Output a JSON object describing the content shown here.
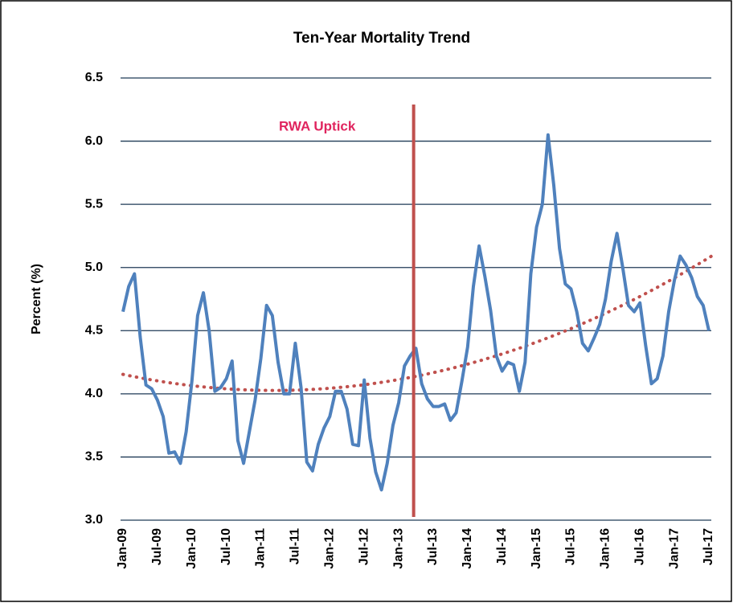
{
  "chart_data": {
    "type": "line",
    "title": "Ten-Year Mortality Trend",
    "y_label": "Percent (%)",
    "categories": [
      "Jan-09",
      null,
      null,
      null,
      null,
      null,
      "Jul-09",
      null,
      null,
      null,
      null,
      null,
      "Jan-10",
      null,
      null,
      null,
      null,
      null,
      "Jul-10",
      null,
      null,
      null,
      null,
      null,
      "Jan-11",
      null,
      null,
      null,
      null,
      null,
      "Jul-11",
      null,
      null,
      null,
      null,
      null,
      "Jan-12",
      null,
      null,
      null,
      null,
      null,
      "Jul-12",
      null,
      null,
      null,
      null,
      null,
      "Jan-13",
      null,
      null,
      null,
      null,
      null,
      "Jul-13",
      null,
      null,
      null,
      null,
      null,
      "Jan-14",
      null,
      null,
      null,
      null,
      null,
      "Jul-14",
      null,
      null,
      null,
      null,
      null,
      "Jan-15",
      null,
      null,
      null,
      null,
      null,
      "Jul-15",
      null,
      null,
      null,
      null,
      null,
      "Jan-16",
      null,
      null,
      null,
      null,
      null,
      "Jul-16",
      null,
      null,
      null,
      null,
      null,
      "Jan-17",
      null,
      null,
      null,
      null,
      null,
      "Jul-17"
    ],
    "series": [
      {
        "color": "#4f81bd",
        "values": [
          4.65,
          4.85,
          4.95,
          4.45,
          4.07,
          4.04,
          3.95,
          3.82,
          3.53,
          3.54,
          3.45,
          3.7,
          4.1,
          4.62,
          4.8,
          4.5,
          4.02,
          4.05,
          4.12,
          4.26,
          3.63,
          3.45,
          3.7,
          3.95,
          4.28,
          4.7,
          4.62,
          4.25,
          4.0,
          4.0,
          4.4,
          4.05,
          3.46,
          3.39,
          3.6,
          3.73,
          3.82,
          4.02,
          4.02,
          3.88,
          3.6,
          3.59,
          4.11,
          3.65,
          3.38,
          3.24,
          3.45,
          3.75,
          3.93,
          4.22,
          4.3,
          4.36,
          4.08,
          3.96,
          3.9,
          3.9,
          3.92,
          3.79,
          3.85,
          4.1,
          4.37,
          4.85,
          5.17,
          4.93,
          4.66,
          4.3,
          4.18,
          4.25,
          4.23,
          4.02,
          4.25,
          4.95,
          5.32,
          5.5,
          6.05,
          5.65,
          5.15,
          4.87,
          4.83,
          4.65,
          4.4,
          4.34,
          4.44,
          4.55,
          4.75,
          5.05,
          5.27,
          5.0,
          4.7,
          4.65,
          4.72,
          4.38,
          4.08,
          4.12,
          4.3,
          4.65,
          4.9,
          5.09,
          5.02,
          4.92,
          4.77,
          4.7,
          4.5
        ]
      }
    ],
    "trendline": {
      "type": "polynomial",
      "order": 2,
      "color": "#c0504d"
    },
    "vline": {
      "at": 50.6,
      "color": "#c0504d",
      "label": "RWA Uptick",
      "label_color": "#e0245e"
    },
    "ylim": [
      3.0,
      6.5
    ],
    "yticks": [
      {
        "value": 3.0,
        "label": "3.0"
      },
      3.5,
      {
        "value": 4.0,
        "label": "4.0"
      },
      4.5,
      {
        "value": 5.0,
        "label": "5.0"
      },
      5.5,
      {
        "value": 6.0,
        "label": "6.0"
      },
      6.5
    ],
    "grid": true,
    "grid_color": "#1f3a56"
  }
}
